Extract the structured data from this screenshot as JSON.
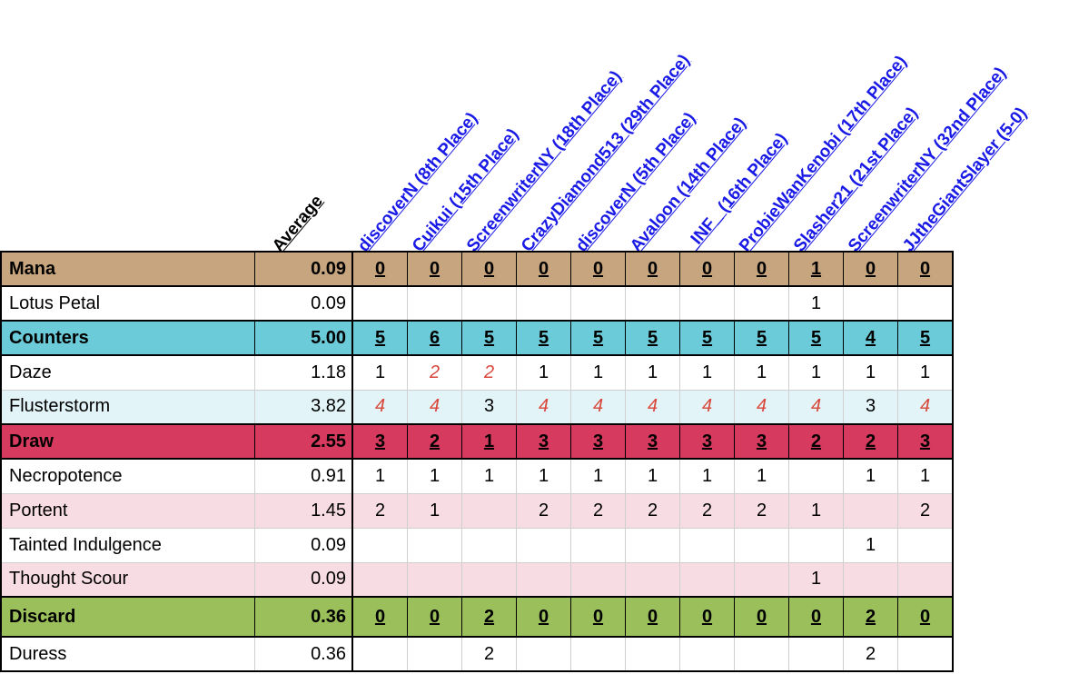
{
  "colors": {
    "mana_header": "#c7a57e",
    "counters_header": "#6ccbd9",
    "counters_alt": "#e2f4f8",
    "draw_header": "#d63a5e",
    "draw_alt": "#f7dce3",
    "discard_header": "#9bbf5b",
    "player_link": "#1a1ae6",
    "highlight_value": "#d9463b"
  },
  "header": {
    "average_label": "Average",
    "players": [
      "discoverN (8th Place)",
      "Cuikui (15th Place)",
      "ScreenwriterNY (18th Place)",
      "CrazyDiamond513 (29th Place)",
      "discoverN (5th Place)",
      "Avaloon (14th Place)",
      "_INF_ (16th Place)",
      "ProbieWanKenobi (17th Place)",
      "Slasher21 (21st Place)",
      "ScreenwriterNY (32nd Place)",
      "JJtheGiantSlayer (5-0)"
    ]
  },
  "rows": [
    {
      "type": "category",
      "name": "Mana",
      "average": "0.09",
      "values": [
        "0",
        "0",
        "0",
        "0",
        "0",
        "0",
        "0",
        "0",
        "1",
        "0",
        "0"
      ],
      "bg": "#c7a57e",
      "h": 38
    },
    {
      "type": "card",
      "name": "Lotus Petal",
      "average": "0.09",
      "values": [
        "",
        "",
        "",
        "",
        "",
        "",
        "",
        "",
        "1",
        "",
        ""
      ],
      "bg": "#ffffff",
      "h": 38
    },
    {
      "type": "category",
      "name": "Counters",
      "average": "5.00",
      "values": [
        "5",
        "6",
        "5",
        "5",
        "5",
        "5",
        "5",
        "5",
        "5",
        "4",
        "5"
      ],
      "bg": "#6ccbd9",
      "h": 38
    },
    {
      "type": "card",
      "name": "Daze",
      "average": "1.18",
      "values": [
        "1",
        "2",
        "2",
        "1",
        "1",
        "1",
        "1",
        "1",
        "1",
        "1",
        "1"
      ],
      "highlight": [
        1,
        2
      ],
      "bg": "#ffffff",
      "h": 38
    },
    {
      "type": "card",
      "name": "Flusterstorm",
      "average": "3.82",
      "values": [
        "4",
        "4",
        "3",
        "4",
        "4",
        "4",
        "4",
        "4",
        "4",
        "3",
        "4"
      ],
      "highlight": [
        0,
        1,
        3,
        4,
        5,
        6,
        7,
        8,
        10
      ],
      "bg": "#e2f4f8",
      "h": 38
    },
    {
      "type": "category",
      "name": "Draw",
      "average": "2.55",
      "values": [
        "3",
        "2",
        "1",
        "3",
        "3",
        "3",
        "3",
        "3",
        "2",
        "2",
        "3"
      ],
      "bg": "#d63a5e",
      "h": 38
    },
    {
      "type": "card",
      "name": "Necropotence",
      "average": "0.91",
      "values": [
        "1",
        "1",
        "1",
        "1",
        "1",
        "1",
        "1",
        "1",
        "",
        "1",
        "1"
      ],
      "bg": "#ffffff",
      "h": 38
    },
    {
      "type": "card",
      "name": "Portent",
      "average": "1.45",
      "values": [
        "2",
        "1",
        "",
        "2",
        "2",
        "2",
        "2",
        "2",
        "1",
        "",
        "2"
      ],
      "bg": "#f7dce3",
      "h": 38
    },
    {
      "type": "card",
      "name": "Tainted Indulgence",
      "average": "0.09",
      "values": [
        "",
        "",
        "",
        "",
        "",
        "",
        "",
        "",
        "",
        "1",
        ""
      ],
      "bg": "#ffffff",
      "h": 38
    },
    {
      "type": "card",
      "name": "Thought Scour",
      "average": "0.09",
      "values": [
        "",
        "",
        "",
        "",
        "",
        "",
        "",
        "",
        "1",
        "",
        ""
      ],
      "bg": "#f7dce3",
      "h": 38
    },
    {
      "type": "category",
      "name": "Discard",
      "average": "0.36",
      "values": [
        "0",
        "0",
        "2",
        "0",
        "0",
        "0",
        "0",
        "0",
        "0",
        "2",
        "0"
      ],
      "bg": "#9bbf5b",
      "h": 44
    },
    {
      "type": "card",
      "name": "Duress",
      "average": "0.36",
      "values": [
        "",
        "",
        "2",
        "",
        "",
        "",
        "",
        "",
        "",
        "2",
        ""
      ],
      "bg": "#ffffff",
      "h": 38
    }
  ]
}
